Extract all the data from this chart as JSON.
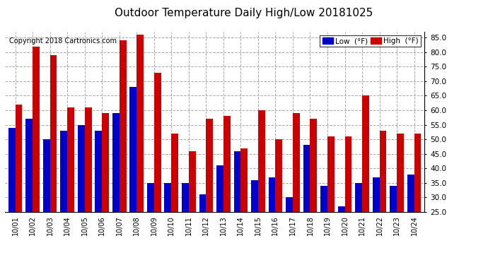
{
  "title": "Outdoor Temperature Daily High/Low 20181025",
  "copyright": "Copyright 2018 Cartronics.com",
  "dates": [
    "10/01",
    "10/02",
    "10/03",
    "10/04",
    "10/05",
    "10/06",
    "10/07",
    "10/08",
    "10/09",
    "10/10",
    "10/11",
    "10/12",
    "10/13",
    "10/14",
    "10/15",
    "10/16",
    "10/17",
    "10/18",
    "10/19",
    "10/20",
    "10/21",
    "10/22",
    "10/23",
    "10/24"
  ],
  "lows": [
    54,
    57,
    50,
    53,
    55,
    53,
    59,
    68,
    35,
    35,
    35,
    31,
    41,
    46,
    36,
    37,
    30,
    48,
    34,
    27,
    35,
    37,
    34,
    38
  ],
  "highs": [
    62,
    82,
    79,
    61,
    61,
    59,
    84,
    86,
    73,
    52,
    46,
    57,
    58,
    47,
    60,
    50,
    59,
    57,
    51,
    51,
    65,
    53,
    52,
    52
  ],
  "low_color": "#0000cc",
  "high_color": "#cc0000",
  "bg_color": "#ffffff",
  "grid_color": "#aaaaaa",
  "ylim": [
    25.0,
    87.0
  ],
  "yticks": [
    25.0,
    30.0,
    35.0,
    40.0,
    45.0,
    50.0,
    55.0,
    60.0,
    65.0,
    70.0,
    75.0,
    80.0,
    85.0
  ],
  "title_fontsize": 11,
  "copyright_fontsize": 7,
  "legend_low_label": "Low  (°F)",
  "legend_high_label": "High  (°F)"
}
